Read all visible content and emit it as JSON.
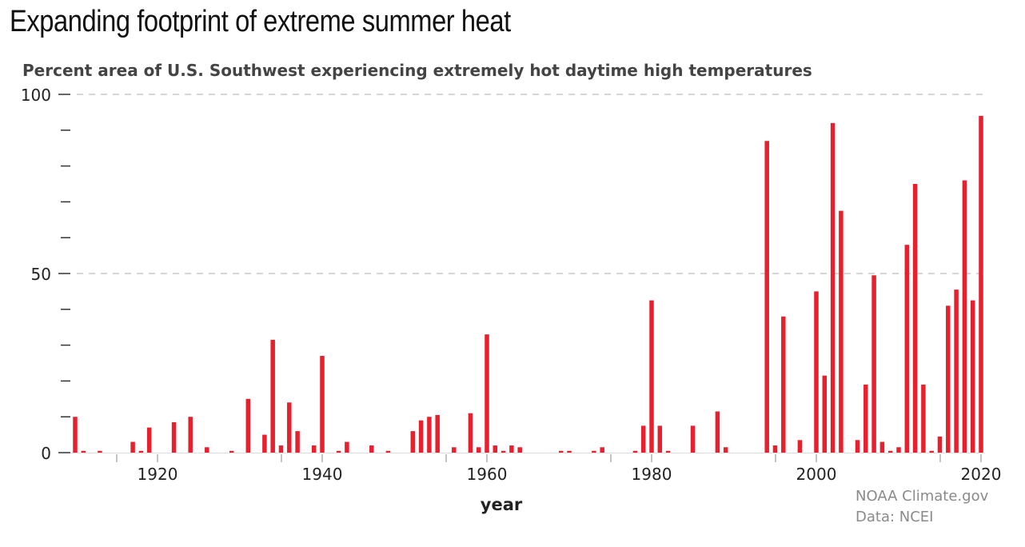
{
  "title": "Expanding footprint of extreme summer heat",
  "subtitle": "Percent area of U.S. Southwest experiencing extremely hot daytime high temperatures",
  "credit": {
    "line1": "NOAA Climate.gov",
    "line2": "Data: NCEI"
  },
  "colors": {
    "bar": "#e8202e",
    "grid": "#c8c8c8",
    "axis": "#333333",
    "label": "#444444"
  },
  "chart_data": {
    "type": "bar",
    "title": "Expanding footprint of extreme summer heat",
    "subtitle": "Percent area of U.S. Southwest experiencing extremely hot daytime high temperatures",
    "xlabel": "year",
    "ylabel": "",
    "xlim": [
      1910,
      2021
    ],
    "ylim": [
      0,
      100
    ],
    "yticks_labeled": [
      0,
      50,
      100
    ],
    "yticks_minor": [
      10,
      20,
      30,
      40,
      60,
      70,
      80,
      90
    ],
    "xticks_labeled": [
      1920,
      1940,
      1960,
      1980,
      2000,
      2020
    ],
    "xticks_minor": [
      1910,
      1930,
      1950,
      1970,
      1990,
      2010
    ],
    "grid": "dashed horizontal at 50 and 100",
    "series": [
      {
        "x": [
          1910,
          1911,
          1913,
          1917,
          1918,
          1919,
          1922,
          1924,
          1926,
          1929,
          1931,
          1933,
          1934,
          1935,
          1936,
          1937,
          1939,
          1940,
          1942,
          1943,
          1946,
          1948,
          1951,
          1952,
          1953,
          1954,
          1956,
          1958,
          1959,
          1960,
          1961,
          1962,
          1963,
          1964,
          1969,
          1970,
          1973,
          1974,
          1978,
          1979,
          1980,
          1981,
          1982,
          1985,
          1988,
          1989,
          1994,
          1995,
          1996,
          1998,
          2000,
          2001,
          2002,
          2003,
          2005,
          2006,
          2007,
          2008,
          2009,
          2010,
          2011,
          2012,
          2013,
          2014,
          2015,
          2016,
          2017,
          2018,
          2019,
          2020
        ],
        "values": [
          10,
          0.5,
          0.5,
          3,
          0.5,
          7,
          8.5,
          10,
          1.5,
          0.5,
          15,
          5,
          31.5,
          2,
          14,
          6,
          2,
          27,
          0.5,
          3,
          2,
          0.5,
          6,
          9,
          10,
          10.5,
          1.5,
          11,
          1.5,
          33,
          2,
          0.5,
          2,
          1.5,
          0.5,
          0.5,
          0.5,
          1.5,
          0.5,
          7.5,
          42.5,
          7.5,
          0.5,
          7.5,
          11.5,
          1.5,
          87,
          2,
          38,
          3.5,
          45,
          21.5,
          92,
          67.5,
          3.5,
          19,
          49.5,
          3,
          0.5,
          1.5,
          58,
          75,
          19,
          0.5,
          4.5,
          41,
          45.5,
          76,
          42.5,
          94
        ]
      }
    ]
  }
}
